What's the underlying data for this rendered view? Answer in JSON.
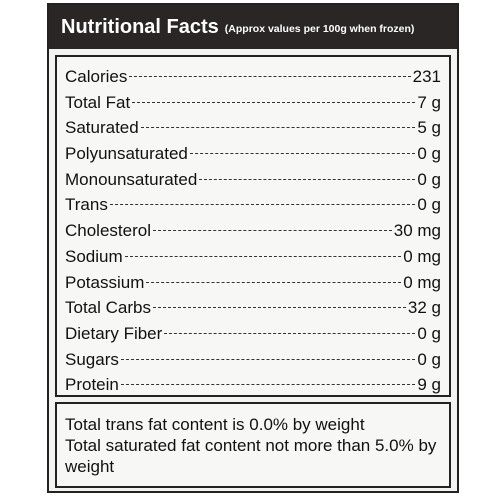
{
  "header": {
    "title": "Nutritional Facts",
    "subtitle": "(Approx values per 100g when frozen)"
  },
  "rows": [
    {
      "name": "Calories",
      "value": "231"
    },
    {
      "name": "Total Fat",
      "value": "7 g"
    },
    {
      "name": "Saturated",
      "value": "5 g"
    },
    {
      "name": "Polyunsaturated",
      "value": "0 g"
    },
    {
      "name": "Monounsaturated",
      "value": "0 g"
    },
    {
      "name": "Trans",
      "value": "0 g"
    },
    {
      "name": "Cholesterol",
      "value": "30 mg"
    },
    {
      "name": "Sodium",
      "value": "0 mg"
    },
    {
      "name": "Potassium",
      "value": "0 mg"
    },
    {
      "name": "Total Carbs",
      "value": "32 g"
    },
    {
      "name": "Dietary Fiber",
      "value": "0 g"
    },
    {
      "name": "Sugars",
      "value": "0 g"
    },
    {
      "name": "Protein",
      "value": "9 g"
    }
  ],
  "notes": [
    "Total trans fat content is 0.0% by weight",
    "Total saturated fat content not more than 5.0% by weight"
  ]
}
